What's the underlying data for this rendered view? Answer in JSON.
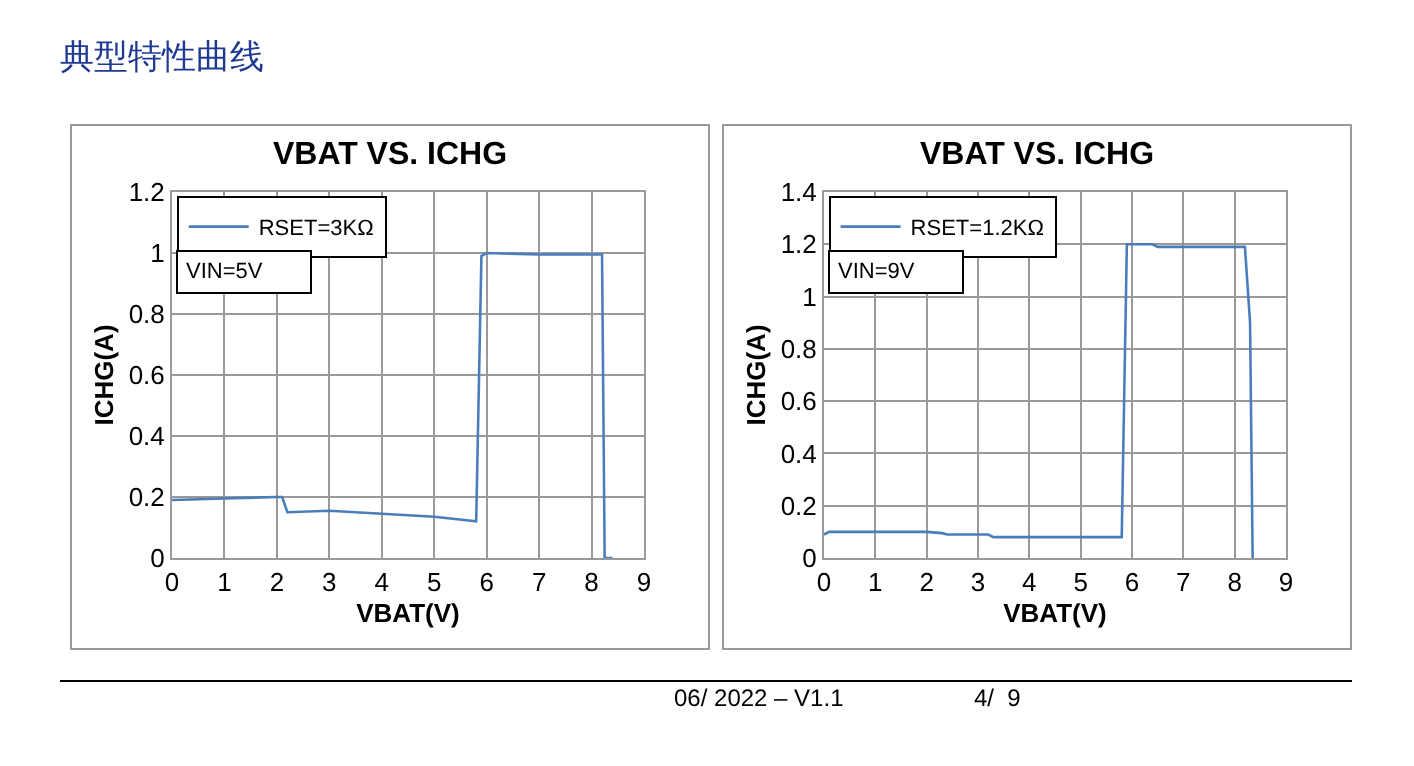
{
  "chart_data": [
    {
      "type": "line",
      "title": "VBAT VS. ICHG",
      "xlabel": "VBAT(V)",
      "ylabel": "ICHG(A)",
      "annotations": [
        "典型特性曲线",
        "VIN=5V"
      ],
      "legend": "top left",
      "grid": true,
      "xlim": [
        0,
        9
      ],
      "xticks": [
        0,
        1,
        2,
        3,
        4,
        5,
        6,
        7,
        8,
        9
      ],
      "ylim": [
        0,
        1.2
      ],
      "yticks": [
        0,
        0.2,
        0.4,
        0.6,
        0.8,
        1,
        1.2
      ],
      "series": [
        {
          "name": "RSET=3KΩ",
          "color": "#4a7ebb",
          "x": [
            0,
            1,
            2,
            2.1,
            2.2,
            3,
            4,
            5,
            5.8,
            5.9,
            6,
            7,
            8,
            8.2,
            8.25,
            8.4
          ],
          "values": [
            0.19,
            0.195,
            0.2,
            0.2,
            0.15,
            0.155,
            0.145,
            0.135,
            0.12,
            0.99,
            1.0,
            0.995,
            0.995,
            0.995,
            0,
            0
          ]
        }
      ]
    },
    {
      "type": "line",
      "title": "VBAT VS. ICHG",
      "xlabel": "VBAT(V)",
      "ylabel": "ICHG(A)",
      "annotations": [
        "VIN=9V",
        "06/ 2022 – V1.1",
        "4/  9"
      ],
      "legend": "top left",
      "grid": true,
      "xlim": [
        0,
        9
      ],
      "xticks": [
        0,
        1,
        2,
        3,
        4,
        5,
        6,
        7,
        8,
        9
      ],
      "ylim": [
        0,
        1.4
      ],
      "yticks": [
        0,
        0.2,
        0.4,
        0.6,
        0.8,
        1,
        1.2,
        1.4
      ],
      "series": [
        {
          "name": "RSET=1.2KΩ",
          "color": "#4a7ebb",
          "x": [
            0,
            0.1,
            2,
            2.3,
            2.4,
            3.2,
            3.3,
            5.8,
            5.9,
            6.4,
            6.5,
            8.2,
            8.3,
            8.35
          ],
          "values": [
            0.09,
            0.1,
            0.1,
            0.095,
            0.09,
            0.09,
            0.08,
            0.08,
            1.2,
            1.2,
            1.19,
            1.19,
            0.9,
            0
          ]
        }
      ]
    }
  ]
}
